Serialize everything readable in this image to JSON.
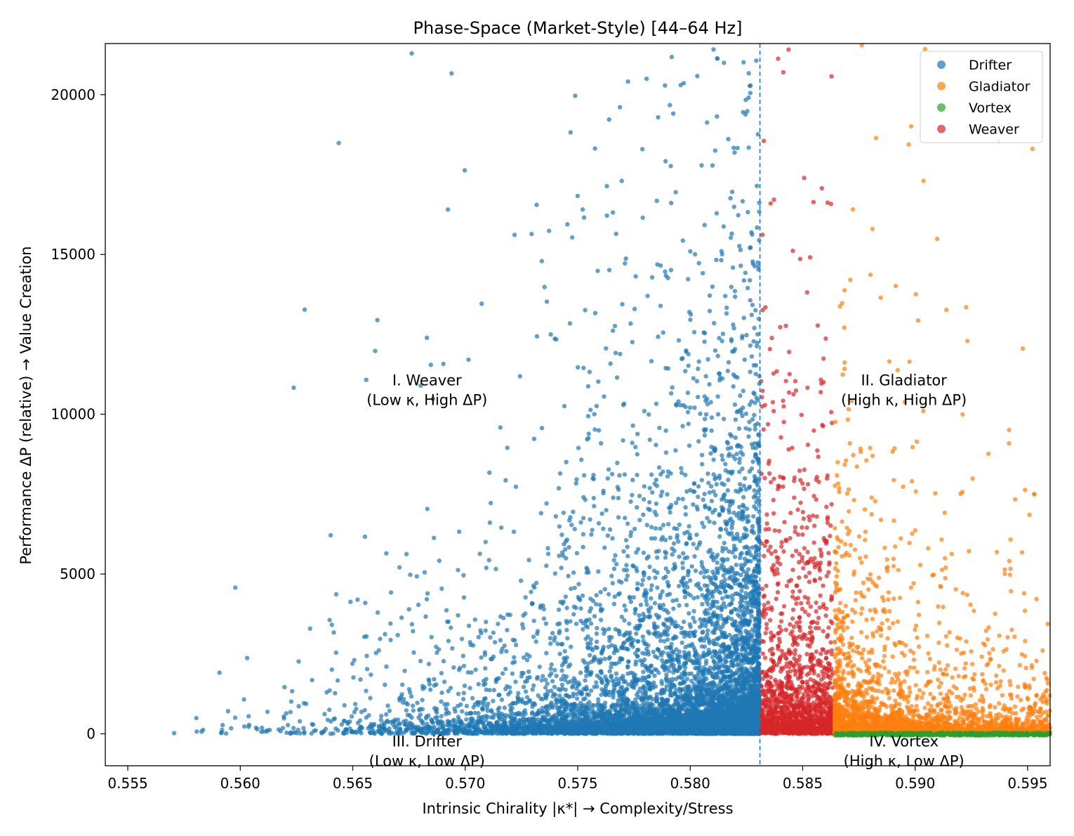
{
  "chart_data": {
    "type": "scatter",
    "title": "Phase-Space (Market-Style)  [44–64 Hz]",
    "xlabel": "Intrinsic Chirality |κ*|  → Complexity/Stress",
    "ylabel": "Performance ΔP (relative) → Value Creation",
    "xlim": [
      0.554,
      0.596
    ],
    "ylim": [
      -1000,
      21600
    ],
    "xticks": [
      0.555,
      0.56,
      0.565,
      0.57,
      0.575,
      0.58,
      0.585,
      0.59,
      0.595
    ],
    "xtick_labels": [
      "0.555",
      "0.560",
      "0.565",
      "0.570",
      "0.575",
      "0.580",
      "0.585",
      "0.590",
      "0.595"
    ],
    "yticks": [
      0,
      5000,
      10000,
      15000,
      20000
    ],
    "ytick_labels": [
      "0",
      "5000",
      "10000",
      "15000",
      "20000"
    ],
    "grid": false,
    "legend_position": "top-right",
    "threshold_x": 0.5831,
    "series": [
      {
        "name": "Drifter",
        "color": "#1f77b4",
        "x_range": [
          0.554,
          0.5831
        ],
        "density": "increasing with x",
        "point_count_estimate": 9000
      },
      {
        "name": "Gladiator",
        "color": "#ff7f0e",
        "x_range": [
          0.5864,
          0.596
        ],
        "density": "decreasing with x",
        "point_count_estimate": 2500
      },
      {
        "name": "Vortex",
        "color": "#2ca02c",
        "x_range": [
          0.5864,
          0.596
        ],
        "y_range": [
          -50,
          30
        ],
        "point_count_estimate": 600
      },
      {
        "name": "Weaver",
        "color": "#d62728",
        "x_range": [
          0.5831,
          0.5864
        ],
        "point_count_estimate": 1500
      }
    ],
    "annotations": [
      {
        "line1": "I. Weaver",
        "line2": "(Low κ, High ΔP)",
        "x": 0.5683,
        "y": 10900
      },
      {
        "line1": "II. Gladiator",
        "line2": "(High κ, High ΔP)",
        "x": 0.5895,
        "y": 10900
      },
      {
        "line1": "III. Drifter",
        "line2": "(Low κ, Low ΔP)",
        "x": 0.5683,
        "y": -400
      },
      {
        "line1": "IV. Vortex",
        "line2": "(High κ, Low ΔP)",
        "x": 0.5895,
        "y": -400
      }
    ]
  }
}
